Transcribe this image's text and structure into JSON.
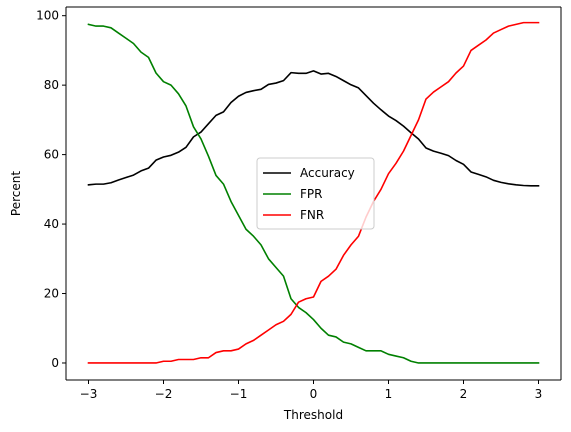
{
  "chart_data": {
    "type": "line",
    "xlabel": "Threshold",
    "ylabel": "Percent",
    "xlim": [
      -3.3,
      3.3
    ],
    "ylim": [
      -4.9,
      102.5
    ],
    "xticks": [
      -3,
      -2,
      -1,
      0,
      1,
      2,
      3
    ],
    "xtick_labels": [
      "−3",
      "−2",
      "−1",
      "0",
      "1",
      "2",
      "3"
    ],
    "yticks": [
      0,
      20,
      40,
      60,
      80,
      100
    ],
    "ytick_labels": [
      "0",
      "20",
      "40",
      "60",
      "80",
      "100"
    ],
    "grid": false,
    "legend_position": "center",
    "x": [
      -3.0,
      -2.9,
      -2.8,
      -2.7,
      -2.6,
      -2.5,
      -2.4,
      -2.3,
      -2.2,
      -2.1,
      -2.0,
      -1.9,
      -1.8,
      -1.7,
      -1.6,
      -1.5,
      -1.4,
      -1.3,
      -1.2,
      -1.1,
      -1.0,
      -0.9,
      -0.8,
      -0.7,
      -0.6,
      -0.5,
      -0.4,
      -0.3,
      -0.2,
      -0.1,
      0.0,
      0.1,
      0.2,
      0.3,
      0.4,
      0.5,
      0.6,
      0.7,
      0.8,
      0.9,
      1.0,
      1.1,
      1.2,
      1.3,
      1.4,
      1.5,
      1.6,
      1.7,
      1.8,
      1.9,
      2.0,
      2.1,
      2.2,
      2.3,
      2.4,
      2.5,
      2.6,
      2.7,
      2.8,
      2.9,
      3.0
    ],
    "series": [
      {
        "name": "Accuracy",
        "color": "#000000",
        "values": [
          51.3,
          51.5,
          51.5,
          51.9,
          52.7,
          53.4,
          54.1,
          55.3,
          56.1,
          58.4,
          59.3,
          59.8,
          60.7,
          62.1,
          65.1,
          66.5,
          68.9,
          71.3,
          72.3,
          75.0,
          76.8,
          77.9,
          78.4,
          78.8,
          80.2,
          80.6,
          81.3,
          83.6,
          83.4,
          83.4,
          84.1,
          83.2,
          83.4,
          82.5,
          81.3,
          80.1,
          79.2,
          77.0,
          74.8,
          72.9,
          71.1,
          69.8,
          68.2,
          66.3,
          64.5,
          61.9,
          61.0,
          60.4,
          59.7,
          58.3,
          57.2,
          55.0,
          54.3,
          53.6,
          52.6,
          52.0,
          51.6,
          51.3,
          51.1,
          51.0,
          51.0
        ]
      },
      {
        "name": "FPR",
        "color": "#008000",
        "values": [
          97.5,
          97.0,
          97.0,
          96.5,
          95.0,
          93.5,
          92.0,
          89.5,
          88.0,
          83.5,
          81.0,
          80.0,
          77.5,
          74.0,
          68.0,
          64.5,
          59.5,
          54.0,
          51.5,
          46.5,
          42.5,
          38.5,
          36.5,
          34.0,
          30.0,
          27.5,
          25.0,
          18.5,
          16.0,
          14.5,
          12.5,
          10.0,
          8.0,
          7.5,
          6.0,
          5.5,
          4.5,
          3.5,
          3.5,
          3.5,
          2.5,
          2.0,
          1.5,
          0.5,
          0.0,
          0.0,
          0.0,
          0.0,
          0.0,
          0.0,
          0.0,
          0.0,
          0.0,
          0.0,
          0.0,
          0.0,
          0.0,
          0.0,
          0.0,
          0.0,
          0.0
        ]
      },
      {
        "name": "FNR",
        "color": "#ff0000",
        "values": [
          0.0,
          0.0,
          0.0,
          0.0,
          0.0,
          0.0,
          0.0,
          0.0,
          0.0,
          0.0,
          0.5,
          0.5,
          1.0,
          1.0,
          1.0,
          1.5,
          1.5,
          3.0,
          3.5,
          3.5,
          4.0,
          5.5,
          6.5,
          8.0,
          9.5,
          11.0,
          12.0,
          14.0,
          17.5,
          18.5,
          19.0,
          23.5,
          25.0,
          27.0,
          31.0,
          34.0,
          36.5,
          42.0,
          46.5,
          50.0,
          54.5,
          57.5,
          61.0,
          65.5,
          70.0,
          76.0,
          78.0,
          79.5,
          81.0,
          83.5,
          85.5,
          90.0,
          91.5,
          93.0,
          95.0,
          96.0,
          97.0,
          97.5,
          98.0,
          98.0,
          98.0
        ]
      }
    ]
  }
}
